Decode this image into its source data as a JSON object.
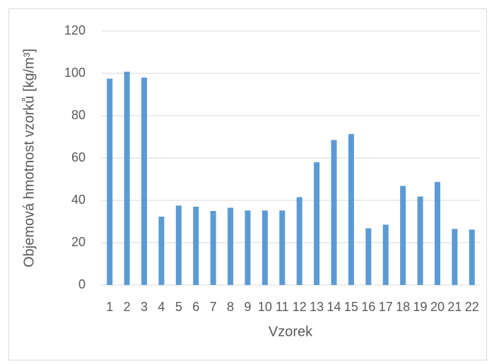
{
  "chart_data": {
    "type": "bar",
    "x_label": "Vzorek",
    "y_label": "Objemová hmotnost vzorků [kg/m³]",
    "categories": [
      "1",
      "2",
      "3",
      "4",
      "5",
      "6",
      "7",
      "8",
      "9",
      "10",
      "11",
      "12",
      "13",
      "14",
      "15",
      "16",
      "17",
      "18",
      "19",
      "20",
      "21",
      "22"
    ],
    "values": [
      97.5,
      100.8,
      98,
      32.3,
      37.5,
      37,
      35,
      36.5,
      35.2,
      35.2,
      35.2,
      41.5,
      58,
      68.5,
      71.3,
      26.8,
      28.5,
      46.8,
      41.8,
      48.7,
      26.5,
      26.2
    ],
    "color": "#5b9bd5",
    "ylim": [
      0,
      120
    ],
    "yticks": [
      0,
      20,
      40,
      60,
      80,
      100,
      120
    ],
    "grid": true
  }
}
